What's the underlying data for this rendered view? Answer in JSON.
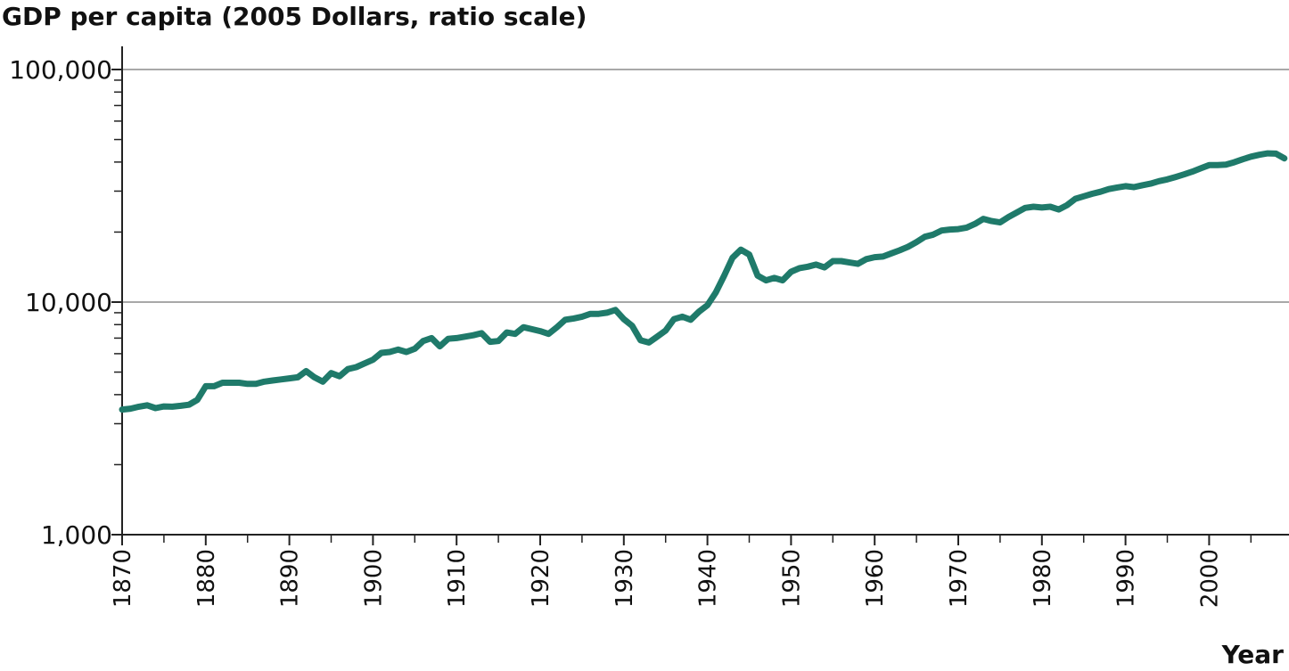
{
  "chart_data": {
    "type": "line",
    "title": "GDP per capita (2005 Dollars, ratio scale)",
    "xlabel": "Year",
    "ylabel": "",
    "yscale": "log",
    "xlim": [
      1870,
      2009
    ],
    "ylim": [
      1000,
      100000
    ],
    "y_ticks": [
      1000,
      10000,
      100000
    ],
    "y_tick_labels": [
      "1,000",
      "10,000",
      "100,000"
    ],
    "x_ticks": [
      1870,
      1880,
      1890,
      1900,
      1910,
      1920,
      1930,
      1940,
      1950,
      1960,
      1970,
      1980,
      1990,
      2000
    ],
    "x_tick_labels": [
      "1870",
      "1880",
      "1890",
      "1900",
      "1910",
      "1920",
      "1930",
      "1940",
      "1950",
      "1960",
      "1970",
      "1980",
      "1990",
      "2000"
    ],
    "grid": "horizontal at major ticks",
    "line_color": "#1f7a6a",
    "x": [
      1870,
      1871,
      1872,
      1873,
      1874,
      1875,
      1876,
      1877,
      1878,
      1879,
      1880,
      1881,
      1882,
      1883,
      1884,
      1885,
      1886,
      1887,
      1888,
      1889,
      1890,
      1891,
      1892,
      1893,
      1894,
      1895,
      1896,
      1897,
      1898,
      1899,
      1900,
      1901,
      1902,
      1903,
      1904,
      1905,
      1906,
      1907,
      1908,
      1909,
      1910,
      1911,
      1912,
      1913,
      1914,
      1915,
      1916,
      1917,
      1918,
      1919,
      1920,
      1921,
      1922,
      1923,
      1924,
      1925,
      1926,
      1927,
      1928,
      1929,
      1930,
      1931,
      1932,
      1933,
      1934,
      1935,
      1936,
      1937,
      1938,
      1939,
      1940,
      1941,
      1942,
      1943,
      1944,
      1945,
      1946,
      1947,
      1948,
      1949,
      1950,
      1951,
      1952,
      1953,
      1954,
      1955,
      1956,
      1957,
      1958,
      1959,
      1960,
      1961,
      1962,
      1963,
      1964,
      1965,
      1966,
      1967,
      1968,
      1969,
      1970,
      1971,
      1972,
      1973,
      1974,
      1975,
      1976,
      1977,
      1978,
      1979,
      1980,
      1981,
      1982,
      1983,
      1984,
      1985,
      1986,
      1987,
      1988,
      1989,
      1990,
      1991,
      1992,
      1993,
      1994,
      1995,
      1996,
      1997,
      1998,
      1999,
      2000,
      2001,
      2002,
      2003,
      2004,
      2005,
      2006,
      2007,
      2008,
      2009
    ],
    "series": [
      {
        "values": [
          3450,
          3480,
          3550,
          3600,
          3500,
          3560,
          3550,
          3580,
          3620,
          3800,
          4350,
          4350,
          4500,
          4500,
          4500,
          4450,
          4450,
          4550,
          4600,
          4650,
          4700,
          4750,
          5050,
          4750,
          4550,
          4950,
          4800,
          5150,
          5250,
          5450,
          5650,
          6050,
          6100,
          6250,
          6100,
          6300,
          6800,
          7000,
          6450,
          6950,
          7000,
          7100,
          7200,
          7350,
          6750,
          6800,
          7400,
          7300,
          7800,
          7650,
          7500,
          7300,
          7800,
          8400,
          8500,
          8650,
          8900,
          8900,
          9000,
          9250,
          8450,
          7900,
          6850,
          6700,
          7100,
          7550,
          8450,
          8650,
          8400,
          9100,
          9700,
          11000,
          13000,
          15500,
          16800,
          16000,
          13000,
          12400,
          12700,
          12400,
          13500,
          14000,
          14200,
          14500,
          14100,
          15000,
          15000,
          14800,
          14600,
          15300,
          15600,
          15700,
          16200,
          16700,
          17300,
          18100,
          19100,
          19500,
          20300,
          20500,
          20600,
          20900,
          21700,
          22800,
          22300,
          22000,
          23200,
          24300,
          25400,
          25700,
          25500,
          25700,
          25000,
          26100,
          27800,
          28500,
          29200,
          29800,
          30600,
          31100,
          31500,
          31200,
          31800,
          32300,
          33100,
          33700,
          34500,
          35400,
          36400,
          37600,
          38800,
          38800,
          39000,
          39900,
          41100,
          42200,
          43000,
          43600,
          43500,
          41500
        ]
      }
    ]
  }
}
